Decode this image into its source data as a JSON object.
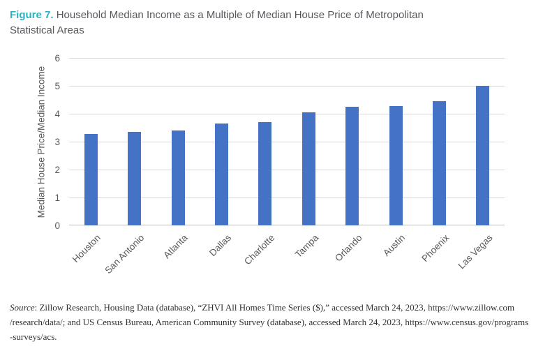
{
  "figure": {
    "label": "Figure 7.",
    "title": "Household Median Income as a Multiple of Median House Price of Metropolitan Statistical Areas"
  },
  "chart_data": {
    "type": "bar",
    "title": "Figure 7. Household Median Income as a Multiple of Median House Price of Metropolitan Statistical Areas",
    "categories": [
      "Houston",
      "San Antonio",
      "Atlanta",
      "Dallas",
      "Charlotte",
      "Tampa",
      "Orlando",
      "Austin",
      "Phoenix",
      "Las Vegas"
    ],
    "values": [
      3.27,
      3.35,
      3.39,
      3.66,
      3.69,
      4.05,
      4.24,
      4.28,
      4.44,
      5.0
    ],
    "xlabel": "",
    "ylabel": "Median House Price/Median Income",
    "ylim": [
      0,
      6
    ],
    "yticks": [
      0,
      1,
      2,
      3,
      4,
      5,
      6
    ],
    "grid": true,
    "legend": "none",
    "bar_color": "#4472c4",
    "gridline_color": "#d9d9d9",
    "axis_line_color": "#bdbdbd",
    "axis_text_color": "#595959"
  },
  "colors": {
    "figure_label": "#2ab2c4",
    "title_text": "#55575c",
    "background": "#ffffff"
  },
  "source": {
    "label": "Source",
    "lines": [
      ": Zillow Research, Housing Data (database), “ZHVI All Homes Time Series ($),” accessed March 24, 2023, https://www.zillow.com",
      "/research/data/; and US Census Bureau, American Community Survey (database), accessed March 24, 2023, https://www.census.gov/programs",
      "-surveys/acs."
    ]
  }
}
